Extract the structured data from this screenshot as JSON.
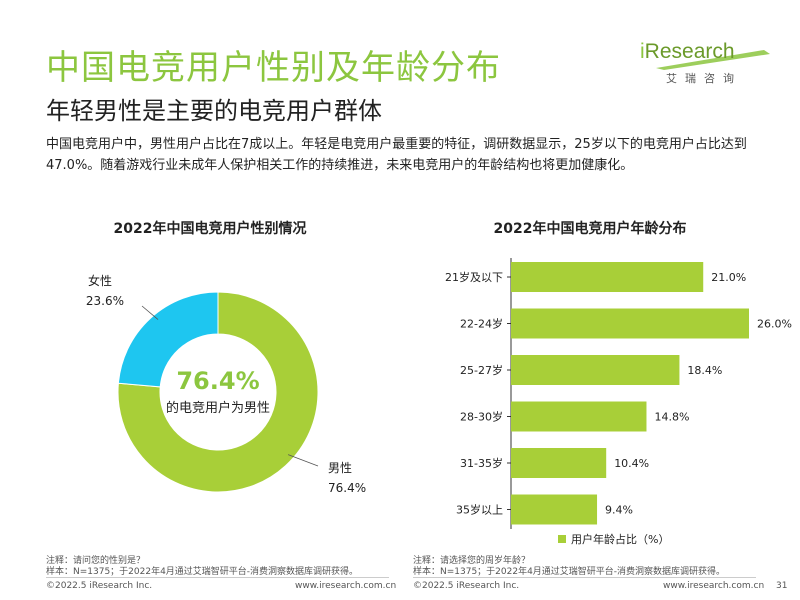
{
  "header": {
    "title": "中国电竞用户性别及年龄分布",
    "subtitle": "年轻男性是主要的电竞用户群体",
    "description": "中国电竞用户中，男性用户占比在7成以上。年轻是电竞用户最重要的特征，调研数据显示，25岁以下的电竞用户占比达到47.0%。随着游戏行业未成年人保护相关工作的持续推进，未来电竞用户的年龄结构也将更加健康化。"
  },
  "logo": {
    "word_i": "i",
    "word_rest": "Research",
    "sub": "艾瑞咨询"
  },
  "colors": {
    "accent": "#8cc63f",
    "female": "#1ec6f0",
    "male": "#a8cf38",
    "bar": "#a8cf38"
  },
  "chart_data": [
    {
      "type": "pie",
      "title": "2022年中国电竞用户性别情况",
      "labels": [
        "男性",
        "女性"
      ],
      "values": [
        76.4,
        23.6
      ],
      "value_labels": [
        "76.4%",
        "23.6%"
      ],
      "center_value": "76.4%",
      "center_caption": "的电竞用户为男性",
      "colors": [
        "#a8cf38",
        "#1ec6f0"
      ]
    },
    {
      "type": "bar",
      "orientation": "horizontal",
      "title": "2022年中国电竞用户年龄分布",
      "categories": [
        "21岁及以下",
        "22-24岁",
        "25-27岁",
        "28-30岁",
        "31-35岁",
        "35岁以上"
      ],
      "series": [
        {
          "name": "用户年龄占比（%）",
          "values": [
            21.0,
            26.0,
            18.4,
            14.8,
            10.4,
            9.4
          ]
        }
      ],
      "value_labels": [
        "21.0%",
        "26.0%",
        "18.4%",
        "14.8%",
        "10.4%",
        "9.4%"
      ],
      "legend_label": "用户年龄占比（%）",
      "legend_position": "bottom-right"
    }
  ],
  "notes": {
    "left": [
      "注释：请问您的性别是？",
      "样本：N=1375；于2022年4月通过艾瑞智研平台-消费洞察数据库调研获得。"
    ],
    "right": [
      "注释：请选择您的周岁年龄？",
      "样本：N=1375；于2022年4月通过艾瑞智研平台-消费洞察数据库调研获得。"
    ]
  },
  "footer": {
    "copyright": "©2022.5 iResearch Inc.",
    "url": "www.iresearch.com.cn",
    "page_number": "31"
  }
}
